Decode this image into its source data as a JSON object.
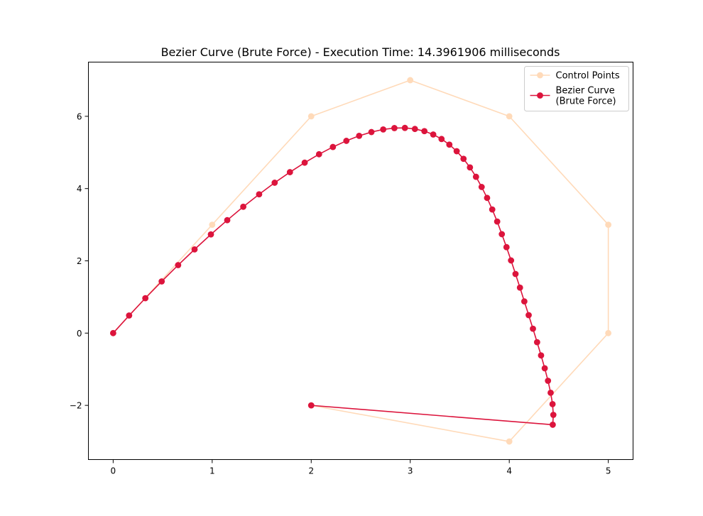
{
  "chart_data": {
    "type": "line",
    "title": "Bezier Curve (Brute Force) - Execution Time: 14.3961906 milliseconds",
    "xlabel": "",
    "ylabel": "",
    "xlim": [
      -0.25,
      5.25
    ],
    "ylim": [
      -3.5,
      7.5
    ],
    "xticks": [
      0,
      1,
      2,
      3,
      4,
      5
    ],
    "yticks": [
      -2,
      0,
      2,
      4,
      6
    ],
    "xtick_labels": [
      "0",
      "1",
      "2",
      "3",
      "4",
      "5"
    ],
    "ytick_labels": [
      "−2",
      "0",
      "2",
      "4",
      "6"
    ],
    "grid": false,
    "legend_position": "top-right",
    "series": [
      {
        "name": "Control Points",
        "color": "#ffdab9",
        "marker": "circle",
        "points": [
          [
            0,
            0
          ],
          [
            1,
            3
          ],
          [
            2,
            6
          ],
          [
            3,
            7
          ],
          [
            4,
            6
          ],
          [
            5,
            3
          ],
          [
            5,
            0
          ],
          [
            4,
            -3
          ],
          [
            2,
            -2
          ]
        ]
      },
      {
        "name": "Bezier Curve\n(Brute Force)",
        "color": "#dc143c",
        "marker": "circle",
        "points": [
          [
            0.0,
            0.0
          ],
          [
            0.161,
            0.487
          ],
          [
            0.325,
            0.966
          ],
          [
            0.49,
            1.431
          ],
          [
            0.656,
            1.882
          ],
          [
            0.822,
            2.317
          ],
          [
            0.987,
            2.732
          ],
          [
            1.152,
            3.126
          ],
          [
            1.314,
            3.497
          ],
          [
            1.474,
            3.842
          ],
          [
            1.631,
            4.162
          ],
          [
            1.785,
            4.454
          ],
          [
            1.934,
            4.717
          ],
          [
            2.079,
            4.95
          ],
          [
            2.219,
            5.151
          ],
          [
            2.355,
            5.321
          ],
          [
            2.484,
            5.459
          ],
          [
            2.608,
            5.564
          ],
          [
            2.727,
            5.636
          ],
          [
            2.84,
            5.674
          ],
          [
            2.946,
            5.679
          ],
          [
            3.047,
            5.65
          ],
          [
            3.143,
            5.589
          ],
          [
            3.232,
            5.496
          ],
          [
            3.316,
            5.372
          ],
          [
            3.395,
            5.217
          ],
          [
            3.469,
            5.034
          ],
          [
            3.538,
            4.823
          ],
          [
            3.603,
            4.586
          ],
          [
            3.664,
            4.326
          ],
          [
            3.721,
            4.044
          ],
          [
            3.776,
            3.742
          ],
          [
            3.828,
            3.422
          ],
          [
            3.878,
            3.087
          ],
          [
            3.925,
            2.738
          ],
          [
            3.972,
            2.379
          ],
          [
            4.018,
            2.011
          ],
          [
            4.063,
            1.637
          ],
          [
            4.108,
            1.258
          ],
          [
            4.152,
            0.878
          ],
          [
            4.196,
            0.498
          ],
          [
            4.239,
            0.121
          ],
          [
            4.281,
            -0.251
          ],
          [
            4.321,
            -0.617
          ],
          [
            4.358,
            -0.974
          ],
          [
            4.391,
            -1.319
          ],
          [
            4.418,
            -1.651
          ],
          [
            4.437,
            -1.966
          ],
          [
            4.445,
            -2.262
          ],
          [
            4.439,
            -2.536
          ],
          [
            2.0,
            -2.0
          ]
        ]
      }
    ]
  }
}
